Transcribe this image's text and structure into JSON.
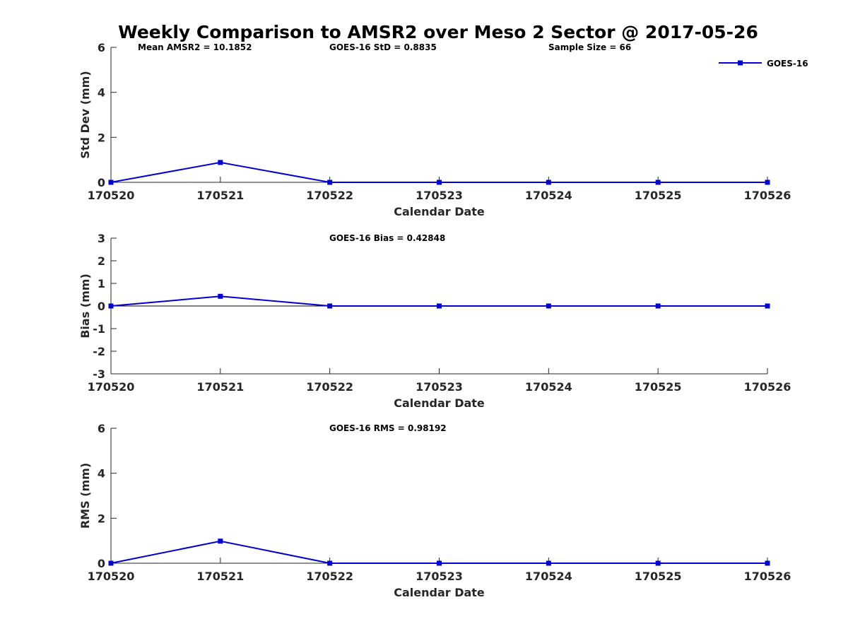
{
  "figure": {
    "title": "Weekly Comparison to AMSR2 over Meso 2 Sector @ 2017-05-26"
  },
  "colors": {
    "series": "#0000d4",
    "axis": "#262626",
    "zero_line": "#000000"
  },
  "chart_data": [
    {
      "type": "line",
      "title": "Weekly Comparison to AMSR2 over Meso 2 Sector @ 2017-05-26",
      "categories": [
        "170520",
        "170521",
        "170522",
        "170523",
        "170524",
        "170525",
        "170526"
      ],
      "xlabel": "Calendar Date",
      "ylabel": "Std Dev (mm)",
      "ylim": [
        0,
        6
      ],
      "yticks": [
        "0",
        "2",
        "4",
        "6"
      ],
      "grid": false,
      "legend": {
        "position": "top-right",
        "entries": [
          "GOES-16"
        ]
      },
      "series": [
        {
          "name": "GOES-16",
          "values": [
            0,
            0.8835,
            0,
            0,
            0,
            0,
            0
          ],
          "marker": "square"
        }
      ],
      "annotations": [
        "Mean AMSR2 = 10.1852",
        "GOES-16 StD = 0.8835",
        "Sample Size = 66"
      ]
    },
    {
      "type": "line",
      "categories": [
        "170520",
        "170521",
        "170522",
        "170523",
        "170524",
        "170525",
        "170526"
      ],
      "xlabel": "Calendar Date",
      "ylabel": "Bias (mm)",
      "ylim": [
        -3,
        3
      ],
      "yticks": [
        "-3",
        "-2",
        "-1",
        "0",
        "1",
        "2",
        "3"
      ],
      "grid": false,
      "zero_line": true,
      "series": [
        {
          "name": "GOES-16",
          "values": [
            0,
            0.42848,
            0,
            0,
            0,
            0,
            0
          ],
          "marker": "square"
        }
      ],
      "annotations": [
        "GOES-16 Bias  = 0.42848"
      ]
    },
    {
      "type": "line",
      "categories": [
        "170520",
        "170521",
        "170522",
        "170523",
        "170524",
        "170525",
        "170526"
      ],
      "xlabel": "Calendar Date",
      "ylabel": "RMS (mm)",
      "ylim": [
        0,
        6
      ],
      "yticks": [
        "0",
        "2",
        "4",
        "6"
      ],
      "grid": false,
      "series": [
        {
          "name": "GOES-16",
          "values": [
            0,
            0.98192,
            0,
            0,
            0,
            0,
            0
          ],
          "marker": "square"
        }
      ],
      "annotations": [
        "GOES-16 RMS = 0.98192"
      ]
    }
  ]
}
